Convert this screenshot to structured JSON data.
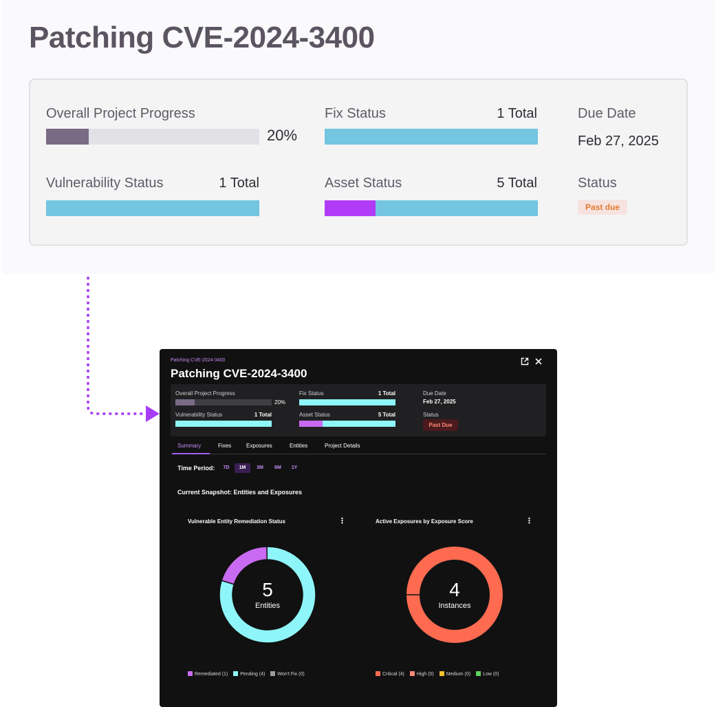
{
  "project": {
    "title": "Patching CVE-2024-3400",
    "overall_progress": {
      "label": "Overall Project Progress",
      "value": "20%",
      "fraction": 0.2
    },
    "fix_status": {
      "label": "Fix Status",
      "total": "1 Total"
    },
    "due_date": {
      "label": "Due Date",
      "value": "Feb 27, 2025"
    },
    "vulnerability_status": {
      "label": "Vulnerability Status",
      "total": "1 Total"
    },
    "asset_status": {
      "label": "Asset Status",
      "total": "5 Total",
      "segments": [
        {
          "color": "#b13cf7",
          "fraction": 0.24
        },
        {
          "color": "#73c5e0",
          "fraction": 0.76
        }
      ]
    },
    "status": {
      "label": "Status",
      "badge_large": "Past due",
      "badge_small": "Past Due"
    }
  },
  "colors": {
    "progress_fill": "#7a6b85",
    "bar_blue_large": "#73c5e0",
    "bar_cyan_small": "#8ef5f8",
    "purple": "#c96af3",
    "cyan": "#8ef5f8",
    "coral": "#ff6b50",
    "connector": "#a63df5"
  },
  "modal": {
    "breadcrumb": "Patching CVE-2024-3400",
    "icons": {
      "open": "external-link-icon",
      "close": "close-icon"
    },
    "tabs": [
      "Summary",
      "Fixes",
      "Exposures",
      "Entities",
      "Project Details"
    ],
    "active_tab": "Summary",
    "time_period": {
      "label": "Time Period:",
      "options": [
        "7D",
        "1M",
        "3M",
        "6M",
        "1Y"
      ],
      "selected": "1M"
    },
    "snapshot_title": "Current Snapshot: Entities and Exposures",
    "entity_chart": {
      "title": "Vulnerable Entity Remediation Status",
      "center_value": "5",
      "center_label": "Entities",
      "legend": [
        {
          "label": "Remediated (1)",
          "color": "#c96af3"
        },
        {
          "label": "Pending (4)",
          "color": "#8ef5f8"
        },
        {
          "label": "Won't Fix (0)",
          "color": "#9a9a9a"
        }
      ]
    },
    "exposure_chart": {
      "title": "Active Exposures by Exposure Score",
      "center_value": "4",
      "center_label": "Instances",
      "legend": [
        {
          "label": "Critical (4)",
          "color": "#ff6b50"
        },
        {
          "label": "High (0)",
          "color": "#ff8a7a"
        },
        {
          "label": "Medium (0)",
          "color": "#f2c230"
        },
        {
          "label": "Low (0)",
          "color": "#5fd35f"
        }
      ]
    }
  },
  "chart_data": [
    {
      "type": "pie",
      "title": "Vulnerable Entity Remediation Status",
      "categories": [
        "Remediated",
        "Pending",
        "Won't Fix"
      ],
      "values": [
        1,
        4,
        0
      ],
      "colors": [
        "#c96af3",
        "#8ef5f8",
        "#9a9a9a"
      ],
      "center_text": "5 Entities",
      "legend": "bottom"
    },
    {
      "type": "pie",
      "title": "Active Exposures by Exposure Score",
      "categories": [
        "Critical",
        "High",
        "Medium",
        "Low"
      ],
      "values": [
        4,
        0,
        0,
        0
      ],
      "colors": [
        "#ff6b50",
        "#ff8a7a",
        "#f2c230",
        "#5fd35f"
      ],
      "center_text": "4 Instances",
      "legend": "bottom"
    }
  ]
}
